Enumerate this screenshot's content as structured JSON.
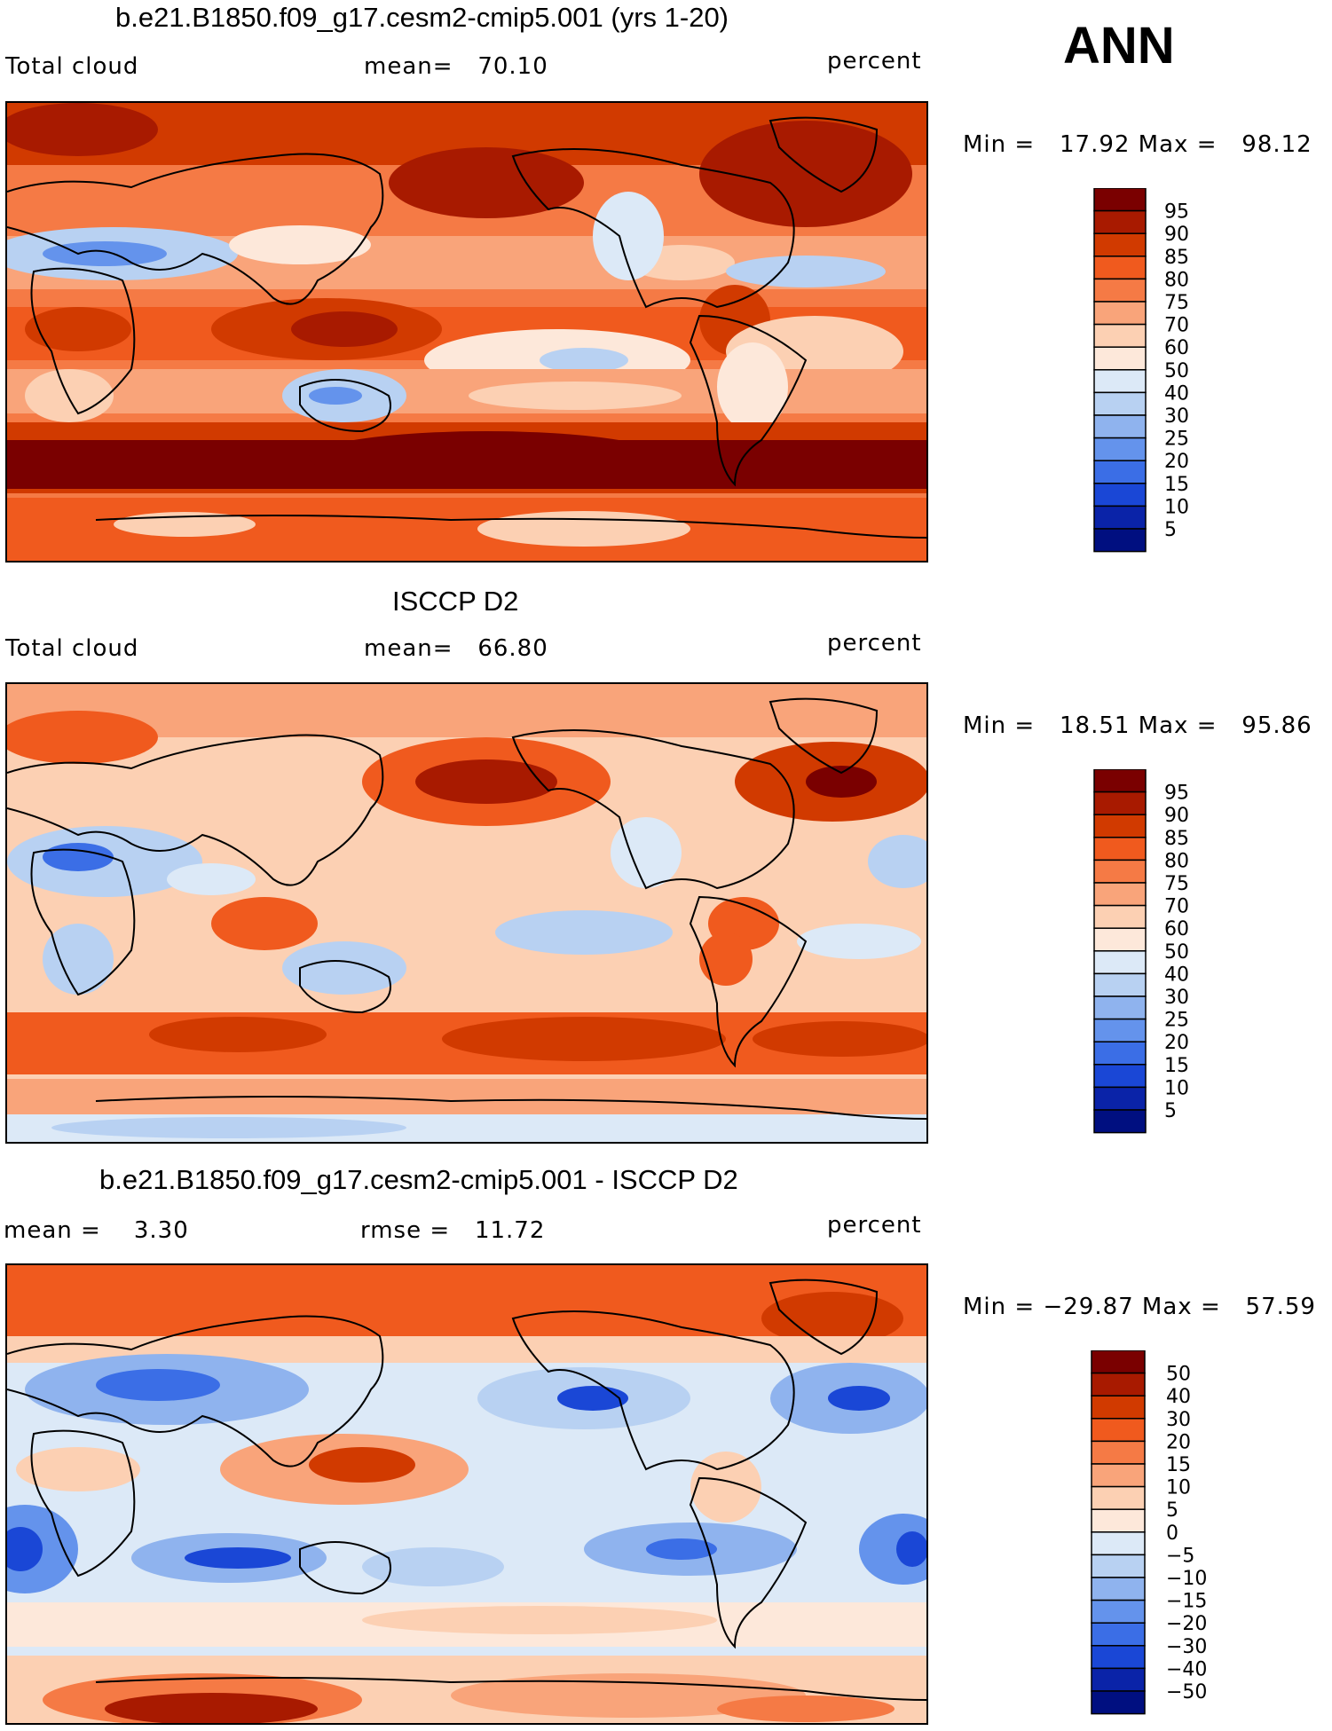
{
  "season": "ANN",
  "panels": [
    {
      "title": "b.e21.B1850.f09_g17.cesm2-cmip5.001 (yrs 1-20)",
      "left_label": "Total cloud",
      "center_label": "mean=   70.10",
      "right_label": "percent",
      "minmax": "Min =   17.92 Max =   98.12",
      "kind": "abs",
      "colorbar": {
        "labels": [
          "95",
          "90",
          "85",
          "80",
          "75",
          "70",
          "60",
          "50",
          "40",
          "30",
          "25",
          "20",
          "15",
          "10",
          "5"
        ]
      }
    },
    {
      "title": "ISCCP D2",
      "left_label": "Total cloud",
      "center_label": "mean=   66.80",
      "right_label": "percent",
      "minmax": "Min =   18.51 Max =   95.86",
      "kind": "abs",
      "colorbar": {
        "labels": [
          "95",
          "90",
          "85",
          "80",
          "75",
          "70",
          "60",
          "50",
          "40",
          "30",
          "25",
          "20",
          "15",
          "10",
          "5"
        ]
      }
    },
    {
      "title": "b.e21.B1850.f09_g17.cesm2-cmip5.001 - ISCCP D2",
      "left_label": "mean =    3.30",
      "center_label": "rmse =   11.72",
      "right_label": "percent",
      "minmax": "Min = −29.87 Max =   57.59",
      "kind": "diff",
      "colorbar": {
        "labels": [
          "50",
          "40",
          "30",
          "20",
          "15",
          "10",
          "5",
          "0",
          "−5",
          "−10",
          "−15",
          "−20",
          "−30",
          "−40",
          "−50"
        ]
      }
    }
  ],
  "colors": {
    "abs_scale": [
      "#7a0000",
      "#a81a00",
      "#d13a00",
      "#f05a1e",
      "#f57a45",
      "#f9a47a",
      "#fcd0b3",
      "#fde8da",
      "#dce9f7",
      "#b8d1f2",
      "#8fb3ee",
      "#6493ec",
      "#3b6ee6",
      "#1a47d6",
      "#0a23a8",
      "#000f80"
    ],
    "diff_scale": [
      "#7a0000",
      "#a81a00",
      "#d13a00",
      "#f05a1e",
      "#f57a45",
      "#f9a47a",
      "#fcd0b3",
      "#fde8da",
      "#dce9f7",
      "#b8d1f2",
      "#8fb3ee",
      "#6493ec",
      "#3b6ee6",
      "#1a47d6",
      "#0a23a8",
      "#000f80"
    ]
  }
}
